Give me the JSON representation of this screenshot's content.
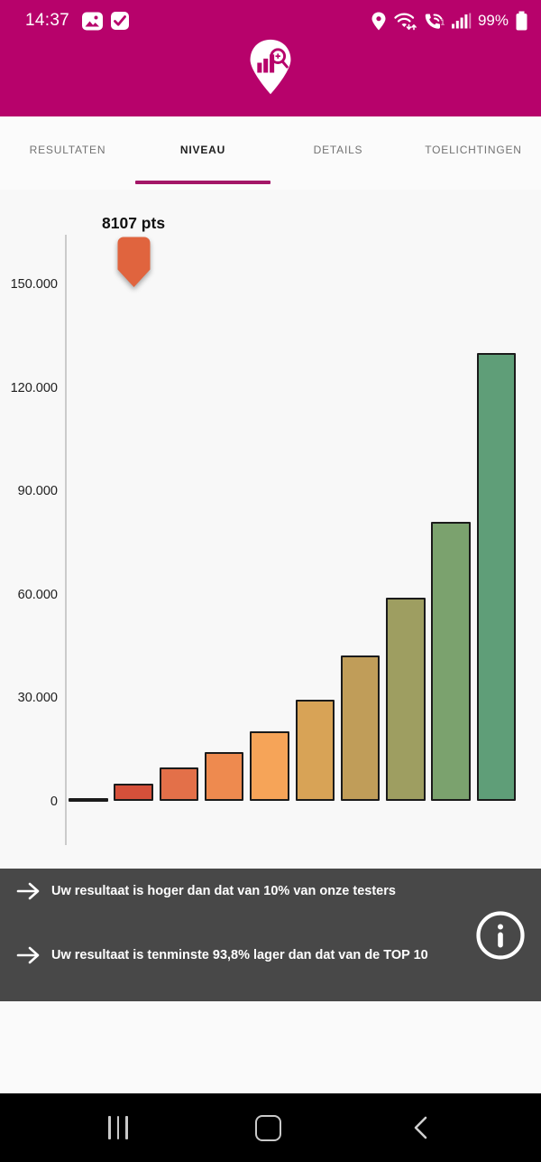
{
  "status_bar": {
    "time": "14:37",
    "battery_percent": "99%",
    "left_icons": [
      "gallery-icon",
      "checkbox-icon"
    ],
    "right_icons": [
      "location-icon",
      "wifi-icon",
      "wifi-calling-icon",
      "signal-icon",
      "battery-icon"
    ]
  },
  "theme": {
    "brand_magenta": "#b7026b",
    "tab_underline": "#a41768",
    "insights_background": "#484848",
    "chart_background": "#f8f8f8"
  },
  "tabs": [
    {
      "label": "RESULTATEN",
      "active": false
    },
    {
      "label": "NIVEAU",
      "active": true
    },
    {
      "label": "DETAILS",
      "active": false
    },
    {
      "label": "TOELICHTINGEN",
      "active": false
    }
  ],
  "chart_data": {
    "type": "bar",
    "title": "",
    "xlabel": "",
    "ylabel": "",
    "values": [
      500,
      5000,
      9700,
      14400,
      20400,
      29400,
      42200,
      59000,
      81200,
      130200
    ],
    "bar_colors": [
      "#c94939",
      "#d5503a",
      "#e37049",
      "#ee8a4f",
      "#f6a458",
      "#d8a356",
      "#c09d59",
      "#9e9e61",
      "#7ba26e",
      "#5f9e78"
    ],
    "bar_border_color": "#1b1b1b",
    "ylim": [
      0,
      157000
    ],
    "yticks": [
      {
        "label": "0",
        "value": 0
      },
      {
        "label": "30.000",
        "value": 30000
      },
      {
        "label": "60.000",
        "value": 60000
      },
      {
        "label": "90.000",
        "value": 90000
      },
      {
        "label": "120.000",
        "value": 120000
      },
      {
        "label": "150.000",
        "value": 150000
      }
    ],
    "grid": false,
    "legend_position": "none",
    "marker": {
      "label": "8107 pts",
      "value": 8107,
      "bar_index": 1,
      "color": "#e0643e"
    }
  },
  "insights": {
    "items": [
      {
        "text": "Uw resultaat is hoger dan dat van 10% van onze testers"
      },
      {
        "text": "Uw resultaat is tenminste 93,8% lager dan dat van de TOP 10"
      }
    ]
  },
  "nav_bar": {
    "buttons": [
      "recents",
      "home",
      "back"
    ]
  }
}
